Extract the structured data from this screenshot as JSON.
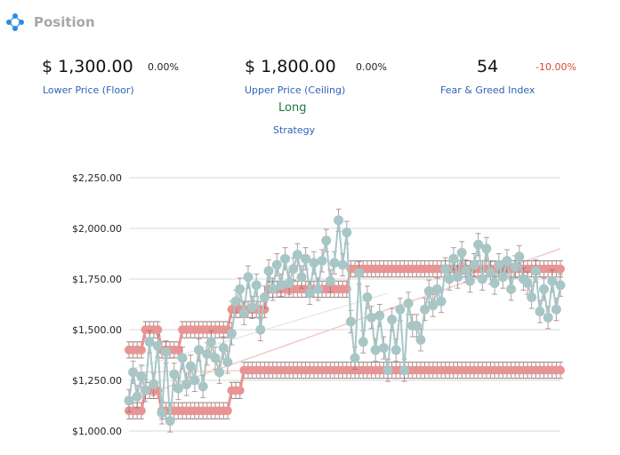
{
  "header": {
    "title": "Position",
    "icon": "diamond-nodes-icon"
  },
  "metrics": {
    "floor": {
      "value": "$ 1,300.00",
      "change": "0.00%",
      "label": "Lower Price (Floor)"
    },
    "ceiling": {
      "value": "$ 1,800.00",
      "change": "0.00%",
      "label": "Upper Price (Ceiling)"
    },
    "fear_greed": {
      "value": "54",
      "change": "-10.00%",
      "label": "Fear & Greed Index"
    },
    "strategy": {
      "value": "Long",
      "label": "Strategy"
    }
  },
  "colors": {
    "accent": "#2f63b8",
    "positive": "#1e7a3e",
    "negative": "#d24b2f",
    "range_series": "#e99494",
    "price_series": "#a8c6c6",
    "error_bar": "#8c6b6b"
  },
  "chart_data": {
    "type": "scatter",
    "title": "",
    "xlabel": "",
    "ylabel": "",
    "ylim": [
      1000,
      2250
    ],
    "yticks": [
      "$1,000.00",
      "$1,250.00",
      "$1,500.00",
      "$1,750.00",
      "$2,000.00",
      "$2,250.00"
    ],
    "grid": true,
    "legend": "none",
    "series": [
      {
        "key": "lower-range",
        "color": "#e99494",
        "error": 40,
        "values": [
          1100,
          1100,
          1100,
          1100,
          1200,
          1200,
          1200,
          1200,
          1100,
          1100,
          1100,
          1100,
          1100,
          1100,
          1100,
          1100,
          1100,
          1100,
          1100,
          1100,
          1100,
          1100,
          1100,
          1100,
          1100,
          1200,
          1200,
          1200,
          1300,
          1300,
          1300,
          1300,
          1300,
          1300,
          1300,
          1300,
          1300,
          1300,
          1300,
          1300,
          1300,
          1300,
          1300,
          1300,
          1300,
          1300,
          1300,
          1300,
          1300,
          1300,
          1300,
          1300,
          1300,
          1300,
          1300,
          1300,
          1300,
          1300,
          1300,
          1300,
          1300,
          1300,
          1300,
          1300,
          1300,
          1300,
          1300,
          1300,
          1300,
          1300,
          1300,
          1300,
          1300,
          1300,
          1300,
          1300,
          1300,
          1300,
          1300,
          1300,
          1300,
          1300,
          1300,
          1300,
          1300,
          1300,
          1300,
          1300,
          1300,
          1300,
          1300,
          1300,
          1300,
          1300,
          1300,
          1300,
          1300,
          1300,
          1300,
          1300,
          1300,
          1300,
          1300,
          1300,
          1300,
          1300
        ]
      },
      {
        "key": "upper-range",
        "color": "#e99494",
        "error": 40,
        "values": [
          1400,
          1400,
          1400,
          1400,
          1500,
          1500,
          1500,
          1500,
          1400,
          1400,
          1400,
          1400,
          1400,
          1500,
          1500,
          1500,
          1500,
          1500,
          1500,
          1500,
          1500,
          1500,
          1500,
          1500,
          1500,
          1600,
          1600,
          1600,
          1600,
          1600,
          1600,
          1600,
          1600,
          1600,
          1700,
          1700,
          1700,
          1700,
          1700,
          1700,
          1700,
          1700,
          1700,
          1700,
          1700,
          1700,
          1700,
          1700,
          1700,
          1700,
          1700,
          1700,
          1700,
          1700,
          1800,
          1800,
          1800,
          1800,
          1800,
          1800,
          1800,
          1800,
          1800,
          1800,
          1800,
          1800,
          1800,
          1800,
          1800,
          1800,
          1800,
          1800,
          1800,
          1800,
          1800,
          1800,
          1800,
          1800,
          1800,
          1800,
          1800,
          1800,
          1800,
          1800,
          1800,
          1800,
          1800,
          1800,
          1800,
          1800,
          1800,
          1800,
          1800,
          1800,
          1800,
          1800,
          1800,
          1800,
          1800,
          1800,
          1800,
          1800,
          1800,
          1800,
          1800,
          1800
        ]
      },
      {
        "key": "price",
        "color": "#a8c6c6",
        "error": 55,
        "values": [
          1150,
          1290,
          1170,
          1270,
          1200,
          1440,
          1230,
          1420,
          1090,
          1390,
          1050,
          1280,
          1210,
          1360,
          1230,
          1320,
          1250,
          1400,
          1220,
          1380,
          1440,
          1360,
          1290,
          1410,
          1340,
          1480,
          1640,
          1700,
          1580,
          1760,
          1610,
          1720,
          1500,
          1660,
          1790,
          1700,
          1820,
          1720,
          1850,
          1730,
          1800,
          1870,
          1760,
          1850,
          1680,
          1830,
          1700,
          1840,
          1940,
          1740,
          1830,
          2040,
          1820,
          1980,
          1540,
          1360,
          1780,
          1440,
          1660,
          1560,
          1400,
          1570,
          1410,
          1300,
          1550,
          1400,
          1600,
          1300,
          1630,
          1520,
          1520,
          1450,
          1600,
          1690,
          1620,
          1700,
          1640,
          1800,
          1750,
          1850,
          1760,
          1880,
          1790,
          1740,
          1820,
          1920,
          1750,
          1900,
          1780,
          1730,
          1820,
          1760,
          1840,
          1700,
          1810,
          1860,
          1750,
          1730,
          1660,
          1790,
          1590,
          1700,
          1560,
          1740,
          1600,
          1720
        ]
      }
    ]
  }
}
